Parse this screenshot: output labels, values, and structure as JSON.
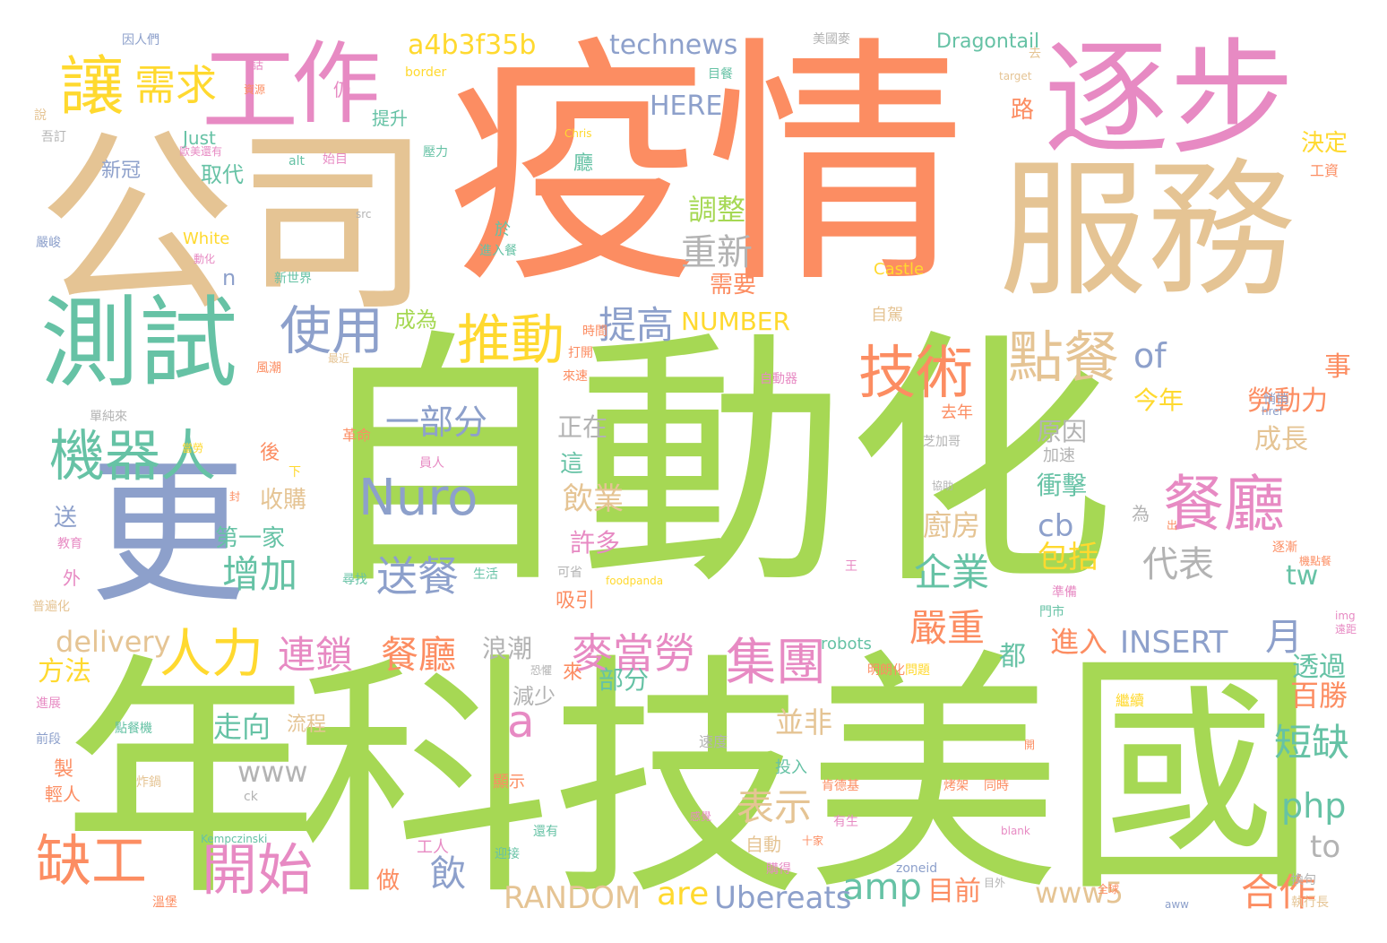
{
  "palette": {
    "green": "#a6d854",
    "orange": "#fc8d62",
    "tan": "#e5c494",
    "teal": "#66c2a5",
    "blue": "#8da0cb",
    "pink": "#e78ac3",
    "yellow": "#ffd92f",
    "gray": "#b3b3b3"
  },
  "words": [
    {
      "text": "自動化",
      "color": "green"
    },
    {
      "text": "疫情",
      "color": "orange"
    },
    {
      "text": "公司",
      "color": "tan"
    },
    {
      "text": "年",
      "color": "green"
    },
    {
      "text": "科技",
      "color": "green"
    },
    {
      "text": "美國",
      "color": "green"
    },
    {
      "text": "服務",
      "color": "tan"
    },
    {
      "text": "逐步",
      "color": "pink"
    },
    {
      "text": "更",
      "color": "blue"
    },
    {
      "text": "測試",
      "color": "teal"
    },
    {
      "text": "工",
      "color": "pink"
    },
    {
      "text": "作",
      "color": "pink"
    },
    {
      "text": "讓",
      "color": "yellow"
    },
    {
      "text": "需求",
      "color": "yellow"
    },
    {
      "text": "a4b3f35b",
      "color": "yellow"
    },
    {
      "text": "technews",
      "color": "blue"
    },
    {
      "text": "Dragontail",
      "color": "teal"
    },
    {
      "text": "HERE",
      "color": "blue"
    },
    {
      "text": "技術",
      "color": "orange"
    },
    {
      "text": "點餐",
      "color": "tan"
    },
    {
      "text": "推動",
      "color": "yellow"
    },
    {
      "text": "使用",
      "color": "blue"
    },
    {
      "text": "機器人",
      "color": "teal"
    },
    {
      "text": "人力",
      "color": "yellow"
    },
    {
      "text": "餐廳",
      "color": "pink"
    },
    {
      "text": "Nuro",
      "color": "blue"
    },
    {
      "text": "一部分",
      "color": "blue"
    },
    {
      "text": "集團",
      "color": "pink"
    },
    {
      "text": "重新",
      "color": "gray"
    },
    {
      "text": "提高",
      "color": "blue"
    },
    {
      "text": "調整",
      "color": "green"
    },
    {
      "text": "NUMBER",
      "color": "yellow"
    },
    {
      "text": "需要",
      "color": "orange"
    },
    {
      "text": "成為",
      "color": "green"
    },
    {
      "text": "of",
      "color": "blue"
    },
    {
      "text": "a",
      "color": "pink"
    },
    {
      "text": "缺工",
      "color": "orange"
    },
    {
      "text": "開始",
      "color": "pink"
    },
    {
      "text": "增加",
      "color": "teal"
    },
    {
      "text": "送餐",
      "color": "blue"
    },
    {
      "text": "連鎖",
      "color": "pink"
    },
    {
      "text": "餐廳",
      "color": "orange"
    },
    {
      "text": "麥當勞",
      "color": "pink"
    },
    {
      "text": "企業",
      "color": "teal"
    },
    {
      "text": "嚴重",
      "color": "orange"
    },
    {
      "text": "代表",
      "color": "gray"
    },
    {
      "text": "月",
      "color": "blue"
    },
    {
      "text": "INSERT",
      "color": "blue"
    },
    {
      "text": "進入",
      "color": "orange"
    },
    {
      "text": "amp",
      "color": "teal"
    },
    {
      "text": "目前",
      "color": "orange"
    },
    {
      "text": "合作",
      "color": "orange"
    },
    {
      "text": "www5",
      "color": "tan"
    },
    {
      "text": "RANDOM",
      "color": "tan"
    },
    {
      "text": "are",
      "color": "yellow"
    },
    {
      "text": "Ubereats",
      "color": "blue"
    },
    {
      "text": "表示",
      "color": "tan"
    },
    {
      "text": "www",
      "color": "gray"
    },
    {
      "text": "delivery",
      "color": "tan"
    },
    {
      "text": "方法",
      "color": "yellow"
    },
    {
      "text": "走向",
      "color": "teal"
    },
    {
      "text": "並非",
      "color": "tan"
    },
    {
      "text": "百勝",
      "color": "orange"
    },
    {
      "text": "短缺",
      "color": "teal"
    },
    {
      "text": "php",
      "color": "teal"
    },
    {
      "text": "to",
      "color": "gray"
    },
    {
      "text": "飲",
      "color": "blue"
    },
    {
      "text": "做",
      "color": "orange"
    },
    {
      "text": "cb",
      "color": "blue"
    },
    {
      "text": "tw",
      "color": "teal"
    },
    {
      "text": "包括",
      "color": "yellow"
    },
    {
      "text": "廚房",
      "color": "tan"
    },
    {
      "text": "收購",
      "color": "tan"
    },
    {
      "text": "第一家",
      "color": "teal"
    },
    {
      "text": "飲業",
      "color": "tan"
    },
    {
      "text": "許多",
      "color": "pink"
    },
    {
      "text": "浪潮",
      "color": "gray"
    },
    {
      "text": "部分",
      "color": "teal"
    },
    {
      "text": "減少",
      "color": "gray"
    },
    {
      "text": "透過",
      "color": "teal"
    },
    {
      "text": "勞動力",
      "color": "orange"
    },
    {
      "text": "成長",
      "color": "tan"
    },
    {
      "text": "原因",
      "color": "gray"
    },
    {
      "text": "衝擊",
      "color": "teal"
    },
    {
      "text": "今年",
      "color": "yellow"
    },
    {
      "text": "事",
      "color": "orange"
    },
    {
      "text": "決定",
      "color": "yellow"
    },
    {
      "text": "正在",
      "color": "gray"
    },
    {
      "text": "這",
      "color": "teal"
    },
    {
      "text": "新冠",
      "color": "blue"
    },
    {
      "text": "取代",
      "color": "teal"
    },
    {
      "text": "Just",
      "color": "teal"
    },
    {
      "text": "路",
      "color": "orange"
    },
    {
      "text": "提升",
      "color": "teal"
    },
    {
      "text": "White",
      "color": "yellow"
    },
    {
      "text": "Castle",
      "color": "yellow"
    },
    {
      "text": "robots",
      "color": "teal"
    },
    {
      "text": "foodpanda",
      "color": "yellow"
    },
    {
      "text": "Kempczinski",
      "color": "teal"
    },
    {
      "text": "zoneid",
      "color": "blue"
    },
    {
      "text": "blank",
      "color": "pink"
    },
    {
      "text": "aww",
      "color": "blue"
    },
    {
      "text": "img",
      "color": "pink"
    },
    {
      "text": "href",
      "color": "blue"
    },
    {
      "text": "alt",
      "color": "teal"
    },
    {
      "text": "src",
      "color": "gray"
    },
    {
      "text": "border",
      "color": "yellow"
    },
    {
      "text": "target",
      "color": "tan"
    },
    {
      "text": "Chris",
      "color": "yellow"
    },
    {
      "text": "ck",
      "color": "gray"
    },
    {
      "text": "因人們",
      "color": "blue"
    },
    {
      "text": "美國麥",
      "color": "gray"
    },
    {
      "text": "資源",
      "color": "orange"
    },
    {
      "text": "目餐",
      "color": "teal"
    },
    {
      "text": "壓力",
      "color": "teal"
    },
    {
      "text": "始目",
      "color": "pink"
    },
    {
      "text": "新世界",
      "color": "teal"
    },
    {
      "text": "進入餐",
      "color": "teal"
    },
    {
      "text": "風潮",
      "color": "orange"
    },
    {
      "text": "最近",
      "color": "tan"
    },
    {
      "text": "自駕",
      "color": "tan"
    },
    {
      "text": "自動器",
      "color": "pink"
    },
    {
      "text": "來速",
      "color": "orange"
    },
    {
      "text": "打開",
      "color": "orange"
    },
    {
      "text": "時間",
      "color": "orange"
    },
    {
      "text": "去年",
      "color": "orange"
    },
    {
      "text": "悄悄",
      "color": "blue"
    },
    {
      "text": "革命",
      "color": "orange"
    },
    {
      "text": "員人",
      "color": "pink"
    },
    {
      "text": "芝加哥",
      "color": "gray"
    },
    {
      "text": "加速",
      "color": "gray"
    },
    {
      "text": "協助",
      "color": "gray"
    },
    {
      "text": "為",
      "color": "gray"
    },
    {
      "text": "出",
      "color": "orange"
    },
    {
      "text": "逐漸",
      "color": "orange"
    },
    {
      "text": "機點餐",
      "color": "orange"
    },
    {
      "text": "準備",
      "color": "pink"
    },
    {
      "text": "門市",
      "color": "teal"
    },
    {
      "text": "可省",
      "color": "gray"
    },
    {
      "text": "王",
      "color": "pink"
    },
    {
      "text": "吸引",
      "color": "orange"
    },
    {
      "text": "明朗化",
      "color": "orange"
    },
    {
      "text": "問題",
      "color": "yellow"
    },
    {
      "text": "繼續",
      "color": "yellow"
    },
    {
      "text": "開",
      "color": "orange"
    },
    {
      "text": "速度",
      "color": "gray"
    },
    {
      "text": "投入",
      "color": "teal"
    },
    {
      "text": "烤架",
      "color": "orange"
    },
    {
      "text": "同時",
      "color": "orange"
    },
    {
      "text": "肯德基",
      "color": "orange"
    },
    {
      "text": "有生",
      "color": "pink"
    },
    {
      "text": "十家",
      "color": "orange"
    },
    {
      "text": "顯示",
      "color": "orange"
    },
    {
      "text": "還有",
      "color": "teal"
    },
    {
      "text": "迎接",
      "color": "teal"
    },
    {
      "text": "感覺",
      "color": "pink"
    },
    {
      "text": "工人",
      "color": "pink"
    },
    {
      "text": "購得",
      "color": "pink"
    },
    {
      "text": "自動",
      "color": "tan"
    },
    {
      "text": "全球",
      "color": "orange"
    },
    {
      "text": "執行長",
      "color": "tan"
    },
    {
      "text": "換句",
      "color": "gray"
    },
    {
      "text": "目外",
      "color": "gray"
    },
    {
      "text": "流程",
      "color": "tan"
    },
    {
      "text": "點餐機",
      "color": "teal"
    },
    {
      "text": "炸鍋",
      "color": "tan"
    },
    {
      "text": "輕人",
      "color": "orange"
    },
    {
      "text": "製",
      "color": "orange"
    },
    {
      "text": "前段",
      "color": "blue"
    },
    {
      "text": "進展",
      "color": "pink"
    },
    {
      "text": "普遍化",
      "color": "tan"
    },
    {
      "text": "教育",
      "color": "pink"
    },
    {
      "text": "外",
      "color": "pink"
    },
    {
      "text": "送",
      "color": "blue"
    },
    {
      "text": "生活",
      "color": "teal"
    },
    {
      "text": "尋找",
      "color": "teal"
    },
    {
      "text": "後",
      "color": "orange"
    },
    {
      "text": "下",
      "color": "yellow"
    },
    {
      "text": "封",
      "color": "orange"
    },
    {
      "text": "當勞",
      "color": "yellow"
    },
    {
      "text": "單純來",
      "color": "gray"
    },
    {
      "text": "於",
      "color": "teal"
    },
    {
      "text": "廳",
      "color": "teal"
    },
    {
      "text": "n",
      "color": "blue"
    },
    {
      "text": "來",
      "color": "orange"
    },
    {
      "text": "都",
      "color": "teal"
    },
    {
      "text": "仍",
      "color": "pink"
    },
    {
      "text": "話",
      "color": "pink"
    },
    {
      "text": "說",
      "color": "tan"
    },
    {
      "text": "吾訂",
      "color": "gray"
    },
    {
      "text": "歐美還有",
      "color": "pink"
    },
    {
      "text": "嚴峻",
      "color": "blue"
    },
    {
      "text": "動化",
      "color": "pink"
    },
    {
      "text": "工資",
      "color": "orange"
    },
    {
      "text": "去",
      "color": "tan"
    },
    {
      "text": "恐懼",
      "color": "gray"
    },
    {
      "text": "遠距",
      "color": "pink"
    },
    {
      "text": "溫堡",
      "color": "orange"
    },
    {
      "text": "年",
      "color": "gray"
    }
  ]
}
